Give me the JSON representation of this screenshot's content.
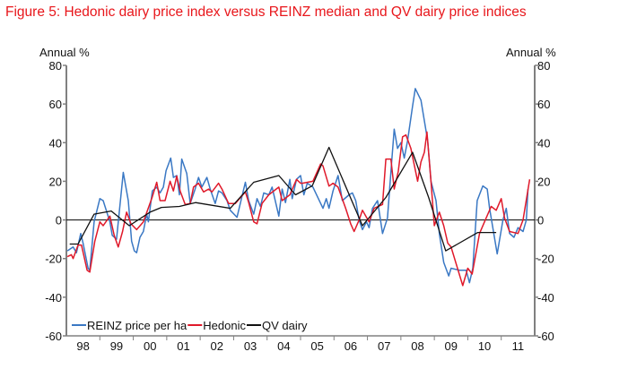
{
  "chart_data": {
    "type": "line",
    "title": "Figure 5: Hedonic dairy price index versus REINZ median and QV dairy price indices",
    "ylabel_left": "Annual %",
    "ylabel_right": "Annual %",
    "ylim": [
      -60,
      80
    ],
    "yticks": [
      -60,
      -40,
      -20,
      0,
      20,
      40,
      60,
      80
    ],
    "xlim": [
      1998,
      2012
    ],
    "xtick_labels": [
      "98",
      "99",
      "00",
      "01",
      "02",
      "03",
      "04",
      "05",
      "06",
      "07",
      "08",
      "09",
      "10",
      "11"
    ],
    "legend_placement": "bottom-left",
    "grid": false,
    "series": [
      {
        "name": "REINZ price per ha",
        "color": "#3a78c4",
        "points": [
          [
            1998.03,
            -16
          ],
          [
            1998.2,
            -14
          ],
          [
            1998.3,
            -17
          ],
          [
            1998.43,
            -7
          ],
          [
            1998.5,
            -12
          ],
          [
            1998.65,
            -25
          ],
          [
            1998.7,
            -26
          ],
          [
            1998.83,
            -1
          ],
          [
            1999.0,
            11
          ],
          [
            1999.1,
            10
          ],
          [
            1999.3,
            -1
          ],
          [
            1999.37,
            -8
          ],
          [
            1999.5,
            -10
          ],
          [
            1999.7,
            24.6
          ],
          [
            1999.85,
            10
          ],
          [
            1999.95,
            -11
          ],
          [
            2000.03,
            -16
          ],
          [
            2000.1,
            -17
          ],
          [
            2000.2,
            -9
          ],
          [
            2000.3,
            -6
          ],
          [
            2000.4,
            3
          ],
          [
            2000.45,
            -1
          ],
          [
            2000.57,
            15
          ],
          [
            2000.7,
            17
          ],
          [
            2000.8,
            14
          ],
          [
            2000.9,
            17
          ],
          [
            2000.98,
            25.5
          ],
          [
            2001.12,
            32
          ],
          [
            2001.2,
            22
          ],
          [
            2001.3,
            23
          ],
          [
            2001.38,
            13
          ],
          [
            2001.45,
            31.5
          ],
          [
            2001.6,
            24
          ],
          [
            2001.7,
            8.5
          ],
          [
            2001.85,
            16
          ],
          [
            2001.95,
            22
          ],
          [
            2002.05,
            17
          ],
          [
            2002.2,
            22
          ],
          [
            2002.3,
            16
          ],
          [
            2002.45,
            8.5
          ],
          [
            2002.55,
            15
          ],
          [
            2002.65,
            14
          ],
          [
            2002.8,
            10
          ],
          [
            2002.9,
            5
          ],
          [
            2003.1,
            1.4
          ],
          [
            2003.35,
            19.5
          ],
          [
            2003.45,
            10
          ],
          [
            2003.6,
            3
          ],
          [
            2003.7,
            11
          ],
          [
            2003.8,
            7
          ],
          [
            2003.9,
            14
          ],
          [
            2004.05,
            13
          ],
          [
            2004.15,
            17
          ],
          [
            2004.35,
            2
          ],
          [
            2004.45,
            16
          ],
          [
            2004.55,
            9
          ],
          [
            2004.68,
            21
          ],
          [
            2004.75,
            11
          ],
          [
            2004.88,
            21
          ],
          [
            2005.0,
            23
          ],
          [
            2005.1,
            13
          ],
          [
            2005.2,
            19
          ],
          [
            2005.37,
            17
          ],
          [
            2005.67,
            6
          ],
          [
            2005.77,
            11
          ],
          [
            2005.85,
            6
          ],
          [
            2005.97,
            15
          ],
          [
            2006.12,
            23
          ],
          [
            2006.25,
            10
          ],
          [
            2006.45,
            13
          ],
          [
            2006.55,
            14
          ],
          [
            2006.65,
            10
          ],
          [
            2006.75,
            0
          ],
          [
            2006.85,
            -5
          ],
          [
            2006.97,
            -1
          ],
          [
            2007.05,
            -4
          ],
          [
            2007.15,
            6
          ],
          [
            2007.3,
            10
          ],
          [
            2007.45,
            -7
          ],
          [
            2007.6,
            1
          ],
          [
            2007.72,
            29
          ],
          [
            2007.8,
            47
          ],
          [
            2007.9,
            37
          ],
          [
            2008.0,
            40
          ],
          [
            2008.1,
            32
          ],
          [
            2008.2,
            41
          ],
          [
            2008.35,
            59
          ],
          [
            2008.43,
            68
          ],
          [
            2008.6,
            62
          ],
          [
            2008.8,
            41
          ],
          [
            2008.9,
            20
          ],
          [
            2009.05,
            10
          ],
          [
            2009.15,
            -7
          ],
          [
            2009.28,
            -22
          ],
          [
            2009.43,
            -29
          ],
          [
            2009.5,
            -25
          ],
          [
            2009.75,
            -26
          ],
          [
            2009.95,
            -26
          ],
          [
            2010.05,
            -32.5
          ],
          [
            2010.15,
            -25
          ],
          [
            2010.28,
            10
          ],
          [
            2010.45,
            17.6
          ],
          [
            2010.58,
            16
          ],
          [
            2010.65,
            6
          ],
          [
            2010.88,
            -17.6
          ],
          [
            2011.05,
            0
          ],
          [
            2011.15,
            6
          ],
          [
            2011.25,
            -7
          ],
          [
            2011.38,
            -9
          ],
          [
            2011.5,
            -4
          ],
          [
            2011.65,
            -6
          ],
          [
            2011.75,
            0
          ],
          [
            2011.8,
            16
          ]
        ]
      },
      {
        "name": "Hedonic",
        "color": "#e0192a",
        "points": [
          [
            1998.03,
            -19
          ],
          [
            1998.15,
            -18
          ],
          [
            1998.2,
            -20
          ],
          [
            1998.35,
            -13
          ],
          [
            1998.45,
            -13
          ],
          [
            1998.62,
            -26
          ],
          [
            1998.7,
            -27
          ],
          [
            1998.85,
            -11
          ],
          [
            1999.0,
            -1
          ],
          [
            1999.1,
            -3
          ],
          [
            1999.3,
            2
          ],
          [
            1999.43,
            -8
          ],
          [
            1999.55,
            -14
          ],
          [
            1999.68,
            -6
          ],
          [
            1999.8,
            4
          ],
          [
            1999.93,
            -2
          ],
          [
            2000.1,
            -5
          ],
          [
            2000.3,
            -1
          ],
          [
            2000.57,
            12
          ],
          [
            2000.7,
            19.5
          ],
          [
            2000.8,
            10
          ],
          [
            2000.95,
            10
          ],
          [
            2001.1,
            20
          ],
          [
            2001.2,
            15
          ],
          [
            2001.3,
            22.7
          ],
          [
            2001.4,
            15
          ],
          [
            2001.55,
            8
          ],
          [
            2001.7,
            8.5
          ],
          [
            2001.8,
            17
          ],
          [
            2001.95,
            19
          ],
          [
            2002.1,
            14.5
          ],
          [
            2002.25,
            16
          ],
          [
            2002.35,
            14.5
          ],
          [
            2002.55,
            19
          ],
          [
            2002.65,
            16
          ],
          [
            2002.85,
            8.5
          ],
          [
            2003.05,
            8.5
          ],
          [
            2003.35,
            14.5
          ],
          [
            2003.45,
            9
          ],
          [
            2003.6,
            -1
          ],
          [
            2003.7,
            -2
          ],
          [
            2003.85,
            8.5
          ],
          [
            2004.05,
            13
          ],
          [
            2004.35,
            17
          ],
          [
            2004.45,
            10
          ],
          [
            2004.68,
            13
          ],
          [
            2004.88,
            21
          ],
          [
            2005.0,
            19
          ],
          [
            2005.05,
            19
          ],
          [
            2005.37,
            20
          ],
          [
            2005.6,
            29
          ],
          [
            2005.67,
            28
          ],
          [
            2005.85,
            17.5
          ],
          [
            2005.97,
            19
          ],
          [
            2006.12,
            17
          ],
          [
            2006.35,
            6
          ],
          [
            2006.5,
            -2
          ],
          [
            2006.6,
            -6
          ],
          [
            2006.75,
            0
          ],
          [
            2006.85,
            5
          ],
          [
            2007.05,
            -1
          ],
          [
            2007.2,
            6
          ],
          [
            2007.45,
            8
          ],
          [
            2007.55,
            31.5
          ],
          [
            2007.7,
            31.5
          ],
          [
            2007.8,
            16
          ],
          [
            2007.92,
            25
          ],
          [
            2008.05,
            43
          ],
          [
            2008.15,
            44
          ],
          [
            2008.3,
            37
          ],
          [
            2008.5,
            20
          ],
          [
            2008.6,
            30
          ],
          [
            2008.7,
            35
          ],
          [
            2008.78,
            45.5
          ],
          [
            2008.9,
            20
          ],
          [
            2009.0,
            -3
          ],
          [
            2009.15,
            4
          ],
          [
            2009.28,
            -3
          ],
          [
            2009.4,
            -12
          ],
          [
            2009.5,
            -14
          ],
          [
            2009.85,
            -34
          ],
          [
            2010.0,
            -25
          ],
          [
            2010.13,
            -28
          ],
          [
            2010.35,
            -7
          ],
          [
            2010.55,
            1
          ],
          [
            2010.7,
            7
          ],
          [
            2010.85,
            5
          ],
          [
            2011.0,
            11
          ],
          [
            2011.1,
            1
          ],
          [
            2011.25,
            -6
          ],
          [
            2011.5,
            -7
          ],
          [
            2011.65,
            0
          ],
          [
            2011.85,
            21
          ]
        ]
      },
      {
        "name": "QV dairy",
        "color": "#111111",
        "points": [
          [
            1998.1,
            -12.5
          ],
          [
            1998.35,
            -12.5
          ],
          [
            1998.83,
            3
          ],
          [
            1999.34,
            4.6
          ],
          [
            1999.88,
            -3
          ],
          [
            2000.5,
            4
          ],
          [
            2000.84,
            6.5
          ],
          [
            2001.38,
            7
          ],
          [
            2001.86,
            9
          ],
          [
            2002.9,
            6
          ],
          [
            2003.6,
            19.5
          ],
          [
            2004.35,
            23
          ],
          [
            2004.85,
            13
          ],
          [
            2005.35,
            17.6
          ],
          [
            2005.85,
            37.6
          ],
          [
            2006.85,
            -3
          ],
          [
            2007.55,
            11.6
          ],
          [
            2008.35,
            35
          ],
          [
            2008.83,
            11.6
          ],
          [
            2009.34,
            -16
          ],
          [
            2010.3,
            -6.5
          ],
          [
            2010.85,
            -6.5
          ]
        ]
      }
    ]
  }
}
